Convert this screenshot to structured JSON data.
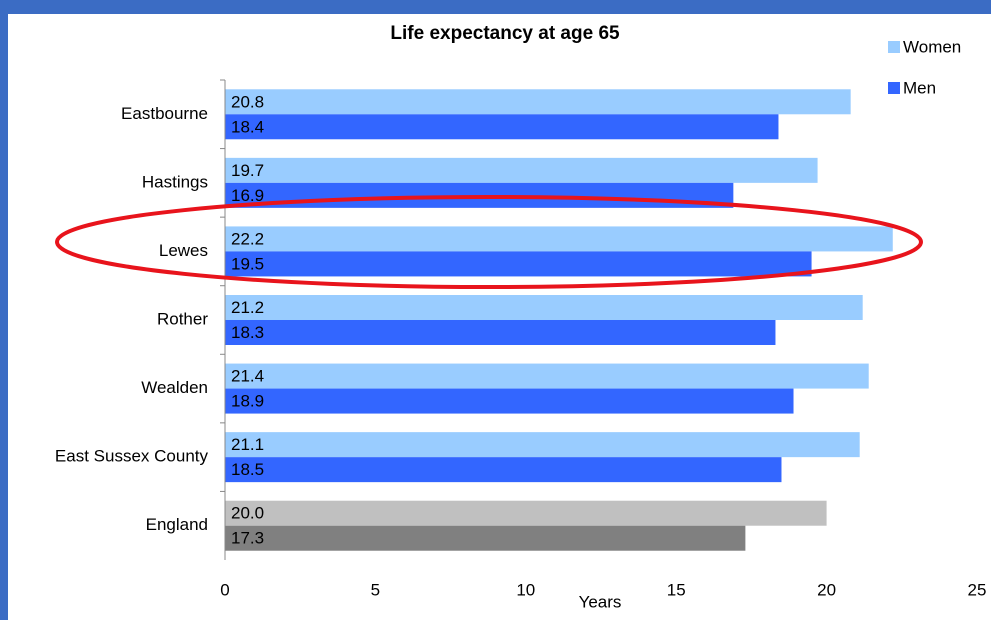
{
  "chart_data": {
    "type": "hbar",
    "title": "Life expectancy at age 65",
    "xlabel": "Years",
    "categories": [
      "Eastbourne",
      "Hastings",
      "Lewes",
      "Rother",
      "Wealden",
      "East Sussex County",
      "England"
    ],
    "series": [
      {
        "name": "Women",
        "color": "#99ccff",
        "colors": [
          "#99ccff",
          "#99ccff",
          "#99ccff",
          "#99ccff",
          "#99ccff",
          "#99ccff",
          "#c0c0c0"
        ],
        "values": [
          20.8,
          19.7,
          22.2,
          21.2,
          21.4,
          21.1,
          20.0
        ],
        "value_labels": [
          "20.8",
          "19.7",
          "22.2",
          "21.2",
          "21.4",
          "21.1",
          "20.0"
        ]
      },
      {
        "name": "Men",
        "color": "#3366ff",
        "colors": [
          "#3366ff",
          "#3366ff",
          "#3366ff",
          "#3366ff",
          "#3366ff",
          "#3366ff",
          "#808080"
        ],
        "values": [
          18.4,
          16.9,
          19.5,
          18.3,
          18.9,
          18.5,
          17.3
        ],
        "value_labels": [
          "18.4",
          "16.9",
          "19.5",
          "18.3",
          "18.9",
          "18.5",
          "17.3"
        ]
      }
    ],
    "xlim": [
      0,
      25
    ],
    "xticks": [
      0,
      5,
      10,
      15,
      20,
      25
    ],
    "grid": false,
    "legend": "top-right"
  }
}
